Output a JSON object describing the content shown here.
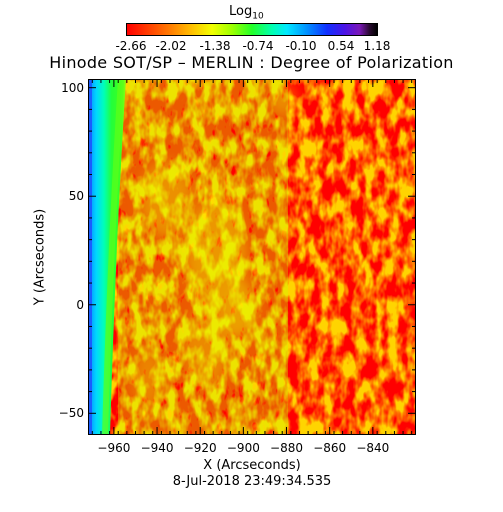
{
  "colorbar": {
    "title": "Log",
    "title_subscript": "10",
    "ticks": [
      "-2.66",
      "-2.02",
      "-1.38",
      "-0.74",
      "-0.10",
      "0.54",
      "1.18"
    ]
  },
  "title": "Hinode SOT/SP – MERLIN : Degree of Polarization",
  "axes": {
    "xlabel": "X (Arcseconds)",
    "ylabel": "Y (Arcseconds)",
    "xticks": [
      -960,
      -940,
      -920,
      -900,
      -880,
      -860,
      -840
    ],
    "yticks": [
      100,
      50,
      0,
      -50
    ],
    "xlim": [
      -972,
      -820
    ],
    "ylim": [
      -60,
      104
    ]
  },
  "datestamp": "8-Jul-2018 23:49:34.535",
  "colors": {
    "background": "#ff0000",
    "limb_green": "#22ff28",
    "limb_blue": "#0090ff"
  }
}
